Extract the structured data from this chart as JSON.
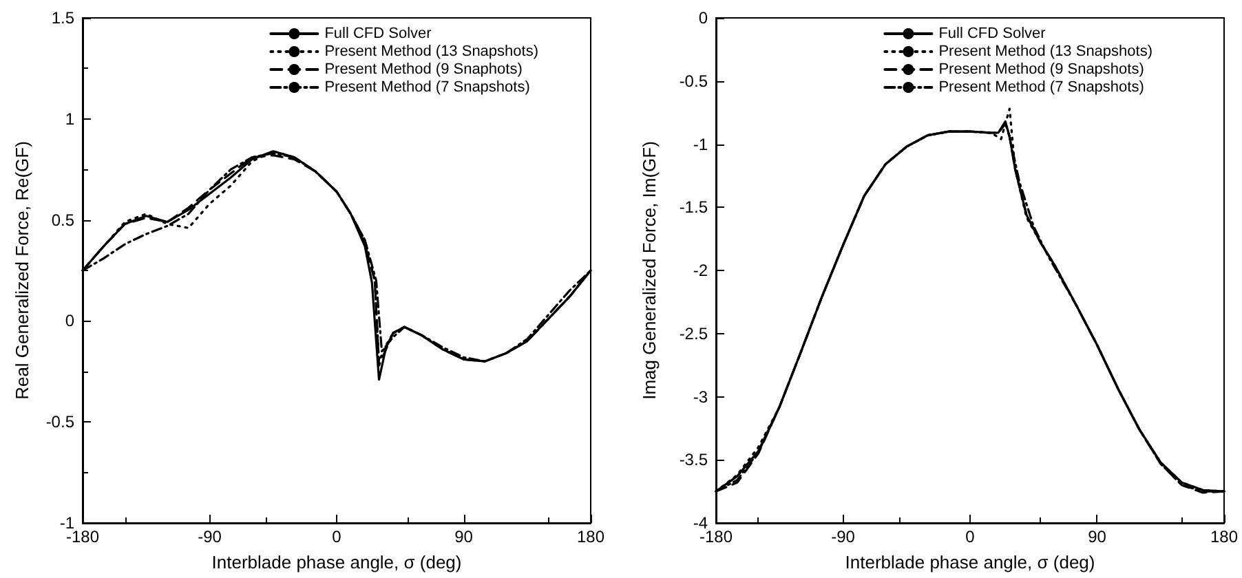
{
  "chart_data": [
    {
      "type": "line",
      "xlabel": "Interblade phase angle, σ (deg)",
      "ylabel": "Real Generalized Force, Re(GF)",
      "xlim": [
        -180,
        180
      ],
      "xticks": [
        -180,
        -90,
        0,
        90,
        180
      ],
      "ylim": [
        -1,
        1.5
      ],
      "yticks": [
        -1,
        -0.5,
        0,
        0.5,
        1,
        1.5
      ],
      "grid": false,
      "legend": "top right",
      "marker": "none",
      "series": [
        {
          "name": "Full CFD Solver",
          "color": "#000000",
          "line_style": "solid",
          "x": [
            -180,
            -165,
            -150,
            -135,
            -120,
            -105,
            -90,
            -75,
            -60,
            -45,
            -30,
            -15,
            0,
            10,
            20,
            25,
            30,
            35,
            40,
            48,
            60,
            75,
            90,
            105,
            120,
            135,
            150,
            165,
            180
          ],
          "values": [
            0.25,
            0.37,
            0.48,
            0.52,
            0.49,
            0.55,
            0.63,
            0.71,
            0.8,
            0.84,
            0.81,
            0.74,
            0.64,
            0.53,
            0.37,
            0.19,
            -0.29,
            -0.13,
            -0.06,
            -0.03,
            -0.07,
            -0.14,
            -0.19,
            -0.2,
            -0.16,
            -0.1,
            0.01,
            0.12,
            0.25
          ]
        },
        {
          "name": "Present Method (13 Snapshots)",
          "color": "#000000",
          "line_style": "dotted",
          "x": [
            -180,
            -165,
            -150,
            -135,
            -120,
            -105,
            -90,
            -75,
            -60,
            -45,
            -30,
            -15,
            0,
            10,
            20,
            27,
            30,
            35,
            40,
            48,
            60,
            75,
            90,
            105,
            120,
            135,
            150,
            165,
            180
          ],
          "values": [
            0.25,
            0.37,
            0.49,
            0.53,
            0.48,
            0.46,
            0.58,
            0.67,
            0.79,
            0.84,
            0.81,
            0.74,
            0.64,
            0.53,
            0.4,
            0.2,
            -0.2,
            -0.12,
            -0.06,
            -0.03,
            -0.07,
            -0.14,
            -0.19,
            -0.2,
            -0.16,
            -0.1,
            0.01,
            0.12,
            0.25
          ]
        },
        {
          "name": "Present Method (9 Snaphots)",
          "color": "#000000",
          "line_style": "dashed",
          "x": [
            -180,
            -165,
            -150,
            -135,
            -120,
            -105,
            -90,
            -75,
            -60,
            -45,
            -30,
            -15,
            0,
            10,
            20,
            27,
            30,
            35,
            40,
            48,
            60,
            75,
            90,
            105,
            120,
            135,
            150,
            165,
            180
          ],
          "values": [
            0.25,
            0.37,
            0.48,
            0.51,
            0.49,
            0.56,
            0.65,
            0.73,
            0.81,
            0.82,
            0.8,
            0.74,
            0.64,
            0.53,
            0.38,
            0.2,
            -0.22,
            -0.14,
            -0.06,
            -0.03,
            -0.07,
            -0.14,
            -0.19,
            -0.2,
            -0.16,
            -0.1,
            0.01,
            0.12,
            0.25
          ]
        },
        {
          "name": "Present Method (7 Snapshots)",
          "color": "#000000",
          "line_style": "dashdot",
          "x": [
            -180,
            -165,
            -150,
            -135,
            -120,
            -105,
            -90,
            -75,
            -60,
            -45,
            -30,
            -15,
            0,
            10,
            20,
            28,
            32,
            40,
            48,
            60,
            75,
            90,
            105,
            120,
            135,
            150,
            165,
            180
          ],
          "values": [
            0.25,
            0.31,
            0.38,
            0.43,
            0.47,
            0.53,
            0.65,
            0.75,
            0.81,
            0.83,
            0.81,
            0.74,
            0.64,
            0.53,
            0.4,
            0.2,
            -0.15,
            -0.08,
            -0.03,
            -0.07,
            -0.13,
            -0.18,
            -0.2,
            -0.16,
            -0.09,
            0.03,
            0.15,
            0.25
          ]
        }
      ]
    },
    {
      "type": "line",
      "xlabel": "Interblade phase angle, σ (deg)",
      "ylabel": "Imag Generalized Force, Im(GF)",
      "xlim": [
        -180,
        180
      ],
      "xticks": [
        -180,
        -90,
        0,
        90,
        180
      ],
      "ylim": [
        -4,
        0
      ],
      "yticks": [
        -4,
        -3.5,
        -3,
        -2.5,
        -2,
        -1.5,
        -1,
        -0.5,
        0
      ],
      "grid": false,
      "legend": "top right",
      "marker": "none",
      "series": [
        {
          "name": "Full CFD Solver",
          "color": "#000000",
          "line_style": "solid",
          "x": [
            -180,
            -165,
            -150,
            -135,
            -120,
            -105,
            -90,
            -75,
            -60,
            -45,
            -30,
            -15,
            0,
            15,
            20,
            25,
            28,
            32,
            40,
            50,
            60,
            75,
            90,
            105,
            120,
            135,
            150,
            165,
            180
          ],
          "values": [
            -3.75,
            -3.63,
            -3.43,
            -3.08,
            -2.65,
            -2.21,
            -1.8,
            -1.41,
            -1.16,
            -1.02,
            -0.93,
            -0.9,
            -0.9,
            -0.91,
            -0.91,
            -0.82,
            -0.94,
            -1.2,
            -1.56,
            -1.78,
            -1.96,
            -2.27,
            -2.59,
            -2.94,
            -3.26,
            -3.52,
            -3.68,
            -3.74,
            -3.75
          ]
        },
        {
          "name": "Present Method (13 Snapshots)",
          "color": "#000000",
          "line_style": "dotted",
          "x": [
            -180,
            -165,
            -150,
            -135,
            -120,
            -105,
            -90,
            -75,
            -60,
            -45,
            -30,
            -15,
            0,
            15,
            22,
            28,
            32,
            40,
            50,
            60,
            75,
            90,
            105,
            120,
            135,
            150,
            165,
            180
          ],
          "values": [
            -3.75,
            -3.62,
            -3.4,
            -3.08,
            -2.65,
            -2.21,
            -1.8,
            -1.41,
            -1.16,
            -1.02,
            -0.93,
            -0.9,
            -0.9,
            -0.91,
            -0.96,
            -0.72,
            -1.2,
            -1.58,
            -1.78,
            -1.96,
            -2.27,
            -2.59,
            -2.94,
            -3.26,
            -3.52,
            -3.68,
            -3.74,
            -3.75
          ]
        },
        {
          "name": "Present Method (9 Snapshots)",
          "color": "#000000",
          "line_style": "dashed",
          "x": [
            -180,
            -165,
            -150,
            -135,
            -120,
            -105,
            -90,
            -75,
            -60,
            -45,
            -30,
            -15,
            0,
            15,
            20,
            25,
            28,
            32,
            40,
            50,
            60,
            75,
            90,
            105,
            120,
            135,
            150,
            165,
            180
          ],
          "values": [
            -3.75,
            -3.68,
            -3.45,
            -3.08,
            -2.65,
            -2.21,
            -1.8,
            -1.41,
            -1.16,
            -1.02,
            -0.93,
            -0.9,
            -0.9,
            -0.91,
            -0.91,
            -0.84,
            -0.94,
            -1.2,
            -1.56,
            -1.78,
            -1.96,
            -2.27,
            -2.59,
            -2.94,
            -3.26,
            -3.53,
            -3.7,
            -3.76,
            -3.75
          ]
        },
        {
          "name": "Present Method (7 Snapshots)",
          "color": "#000000",
          "line_style": "dashdot",
          "x": [
            -180,
            -165,
            -150,
            -135,
            -120,
            -105,
            -90,
            -75,
            -60,
            -45,
            -30,
            -15,
            0,
            15,
            20,
            25,
            28,
            35,
            45,
            55,
            75,
            90,
            105,
            120,
            135,
            150,
            165,
            180
          ],
          "values": [
            -3.75,
            -3.66,
            -3.44,
            -3.08,
            -2.65,
            -2.21,
            -1.8,
            -1.41,
            -1.16,
            -1.02,
            -0.93,
            -0.9,
            -0.9,
            -0.91,
            -0.91,
            -0.83,
            -0.94,
            -1.3,
            -1.65,
            -1.88,
            -2.27,
            -2.59,
            -2.94,
            -3.26,
            -3.53,
            -3.7,
            -3.75,
            -3.75
          ]
        }
      ]
    }
  ]
}
